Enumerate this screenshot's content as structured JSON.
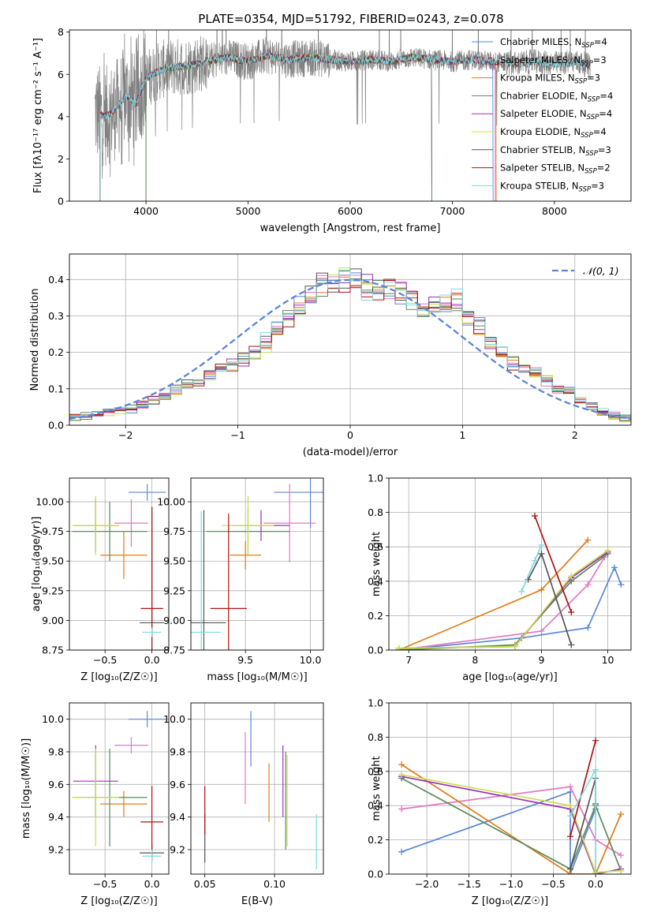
{
  "figure": {
    "title": "PLATE=0354, MJD=51792, FIBERID=0243, z=0.078"
  },
  "colors": {
    "Chabrier MILES": "#5b86d8",
    "Salpeter MILES": "#e377c2",
    "Kroupa MILES": "#e07b1a",
    "Chabrier ELODIE": "#5a8a5a",
    "Salpeter ELODIE": "#9b30b8",
    "Kroupa ELODIE": "#c8e04a",
    "Chabrier STELIB": "#555555",
    "Salpeter STELIB": "#b01010",
    "Kroupa STELIB": "#7fd8dc",
    "data": "#808080",
    "normal": "#5b86d8"
  },
  "chart_data": [
    {
      "id": "spectrum",
      "type": "line",
      "title": "PLATE=0354, MJD=51792, FIBERID=0243, z=0.078",
      "xlabel": "wavelength [Angstrom, rest frame]",
      "ylabel": "Flux [fλ10⁻¹⁷ erg cm⁻² s⁻¹ A⁻¹]",
      "xlim": [
        3250,
        8750
      ],
      "ylim": [
        0,
        8.1
      ],
      "xticks": [
        4000,
        5000,
        6000,
        7000,
        8000
      ],
      "yticks": [
        0,
        2,
        4,
        6,
        8
      ],
      "legend_position": "upper-right",
      "legend": [
        {
          "label": "Chabrier MILES, N",
          "sub": "SSP",
          "tail": "=4",
          "model": "Chabrier MILES"
        },
        {
          "label": "Salpeter MILES, N",
          "sub": "SSP",
          "tail": "=3",
          "model": "Salpeter MILES"
        },
        {
          "label": "Kroupa MILES, N",
          "sub": "SSP",
          "tail": "=3",
          "model": "Kroupa MILES"
        },
        {
          "label": "Chabrier ELODIE, N",
          "sub": "SSP",
          "tail": "=4",
          "model": "Chabrier ELODIE"
        },
        {
          "label": "Salpeter ELODIE, N",
          "sub": "SSP",
          "tail": "=4",
          "model": "Salpeter ELODIE"
        },
        {
          "label": "Kroupa ELODIE, N",
          "sub": "SSP",
          "tail": "=4",
          "model": "Kroupa ELODIE"
        },
        {
          "label": "Chabrier STELIB, N",
          "sub": "SSP",
          "tail": "=3",
          "model": "Chabrier STELIB"
        },
        {
          "label": "Salpeter STELIB, N",
          "sub": "SSP",
          "tail": "=2",
          "model": "Salpeter STELIB"
        },
        {
          "label": "Kroupa STELIB, N",
          "sub": "SSP",
          "tail": "=3",
          "model": "Kroupa STELIB"
        }
      ],
      "spectrum_range": [
        3500,
        8350
      ],
      "continuum": [
        [
          3500,
          4.2
        ],
        [
          3600,
          4.0
        ],
        [
          3700,
          4.3
        ],
        [
          3800,
          5.0
        ],
        [
          3900,
          4.6
        ],
        [
          4000,
          5.8
        ],
        [
          4100,
          6.1
        ],
        [
          4200,
          6.3
        ],
        [
          4400,
          6.4
        ],
        [
          4600,
          6.6
        ],
        [
          4800,
          6.8
        ],
        [
          5000,
          6.6
        ],
        [
          5200,
          6.9
        ],
        [
          5400,
          6.7
        ],
        [
          5600,
          6.8
        ],
        [
          5800,
          6.7
        ],
        [
          6000,
          6.6
        ],
        [
          6200,
          6.7
        ],
        [
          6400,
          6.6
        ],
        [
          6600,
          6.8
        ],
        [
          6800,
          6.7
        ],
        [
          7000,
          6.6
        ],
        [
          7200,
          6.7
        ],
        [
          7400,
          6.6
        ],
        [
          7600,
          6.5
        ],
        [
          7800,
          6.6
        ],
        [
          8000,
          6.5
        ],
        [
          8200,
          6.6
        ],
        [
          8350,
          6.4
        ]
      ],
      "model_cutoffs": [
        {
          "model": "Kroupa MILES",
          "start": 3550,
          "end": 7430
        },
        {
          "model": "Salpeter MILES",
          "start": 3550,
          "end": 7420
        },
        {
          "model": "Chabrier MILES",
          "start": 3550,
          "end": 7400
        },
        {
          "model": "Kroupa ELODIE",
          "start": 4000,
          "end": 6800
        },
        {
          "model": "Salpeter ELODIE",
          "start": 4000,
          "end": 6800
        },
        {
          "model": "Chabrier ELODIE",
          "start": 4000,
          "end": 6800
        },
        {
          "model": "Salpeter STELIB",
          "start": 3550,
          "end": 8350
        },
        {
          "model": "Chabrier STELIB",
          "start": 3550,
          "end": 8350
        },
        {
          "model": "Kroupa STELIB",
          "start": 3550,
          "end": 8350
        }
      ]
    },
    {
      "id": "residuals",
      "type": "bar",
      "xlabel": "(data-model)/error",
      "ylabel": "Normed distribution",
      "xlim": [
        -2.5,
        2.5
      ],
      "ylim": [
        0,
        0.47
      ],
      "xticks": [
        -2,
        -1,
        0,
        1,
        2
      ],
      "yticks": [
        0.0,
        0.1,
        0.2,
        0.3,
        0.4
      ],
      "bin_edges_range": [
        -2.5,
        2.5
      ],
      "n_bins": 50,
      "legend": [
        {
          "label": "𝒩(0, 1)",
          "style": "dashed"
        }
      ],
      "base_hist": [
        0.02,
        0.025,
        0.03,
        0.035,
        0.04,
        0.045,
        0.055,
        0.07,
        0.08,
        0.1,
        0.11,
        0.12,
        0.14,
        0.15,
        0.17,
        0.18,
        0.2,
        0.23,
        0.27,
        0.3,
        0.33,
        0.36,
        0.38,
        0.39,
        0.4,
        0.39,
        0.38,
        0.37,
        0.37,
        0.36,
        0.35,
        0.33,
        0.32,
        0.33,
        0.34,
        0.3,
        0.27,
        0.23,
        0.2,
        0.17,
        0.16,
        0.14,
        0.12,
        0.1,
        0.09,
        0.07,
        0.05,
        0.035,
        0.028,
        0.02
      ]
    },
    {
      "id": "age-vs-z",
      "type": "scatter",
      "xlabel": "Z [log₁₀(Z/Z☉)]",
      "ylabel": "age  [log₁₀(age/yr)]",
      "xlim": [
        -0.88,
        0.18
      ],
      "ylim": [
        8.75,
        10.2
      ],
      "xticks": [
        -0.5,
        0.0
      ],
      "yticks": [
        8.75,
        9.0,
        9.25,
        9.5,
        9.75,
        10.0
      ],
      "points": [
        {
          "model": "Chabrier MILES",
          "x": -0.05,
          "y": 10.08,
          "xerr": 0.2,
          "yerr": 0.07
        },
        {
          "model": "Salpeter MILES",
          "x": -0.22,
          "y": 9.82,
          "xerr": 0.18,
          "yerr": 0.2
        },
        {
          "model": "Kroupa MILES",
          "x": -0.3,
          "y": 9.55,
          "xerr": 0.25,
          "yerr": 0.2
        },
        {
          "model": "Chabrier ELODIE",
          "x": -0.45,
          "y": 9.75,
          "xerr": 0.4,
          "yerr": 0.25
        },
        {
          "model": "Salpeter ELODIE",
          "x": -0.6,
          "y": 9.8,
          "xerr": 0.24,
          "yerr": 0.22
        },
        {
          "model": "Kroupa ELODIE",
          "x": -0.6,
          "y": 9.8,
          "xerr": 0.25,
          "yerr": 0.25
        },
        {
          "model": "Chabrier STELIB",
          "x": 0.0,
          "y": 8.98,
          "xerr": 0.13,
          "yerr": 0.98
        },
        {
          "model": "Salpeter STELIB",
          "x": 0.0,
          "y": 9.1,
          "xerr": 0.12,
          "yerr": 0.85
        },
        {
          "model": "Kroupa STELIB",
          "x": 0.0,
          "y": 8.9,
          "xerr": 0.1,
          "yerr": 0.04
        }
      ]
    },
    {
      "id": "age-vs-mass",
      "type": "scatter",
      "xlabel": "mass [log₁₀(M/M☉)]",
      "ylabel": "",
      "xlim": [
        9.08,
        10.1
      ],
      "ylim": [
        8.75,
        10.2
      ],
      "xticks": [
        9.5,
        10.0
      ],
      "yticks": [
        8.75,
        9.0,
        9.25,
        9.5,
        9.75,
        10.0
      ],
      "points": [
        {
          "model": "Chabrier MILES",
          "x": 10.0,
          "y": 10.08,
          "xerr": 0.28,
          "yerr": 0.3
        },
        {
          "model": "Salpeter MILES",
          "x": 9.84,
          "y": 9.82,
          "xerr": 0.2,
          "yerr": 0.33
        },
        {
          "model": "Kroupa MILES",
          "x": 9.5,
          "y": 9.55,
          "xerr": 0.12,
          "yerr": 0.12
        },
        {
          "model": "Chabrier ELODIE",
          "x": 9.52,
          "y": 9.75,
          "xerr": 0.32,
          "yerr": 0.2
        },
        {
          "model": "Salpeter ELODIE",
          "x": 9.62,
          "y": 9.8,
          "xerr": 0.22,
          "yerr": 0.13
        },
        {
          "model": "Kroupa ELODIE",
          "x": 9.52,
          "y": 9.8,
          "xerr": 0.2,
          "yerr": 0.25
        },
        {
          "model": "Chabrier STELIB",
          "x": 9.18,
          "y": 8.98,
          "xerr": 0.17,
          "yerr": 0.95
        },
        {
          "model": "Salpeter STELIB",
          "x": 9.37,
          "y": 9.1,
          "xerr": 0.14,
          "yerr": 0.8
        },
        {
          "model": "Kroupa STELIB",
          "x": 9.16,
          "y": 8.9,
          "xerr": 0.15,
          "yerr": 1.02
        }
      ]
    },
    {
      "id": "weight-vs-age",
      "type": "line",
      "xlabel": "age  [log₁₀(age/yr)]",
      "ylabel": "mass weight",
      "xlim": [
        6.7,
        10.35
      ],
      "ylim": [
        0,
        1.0
      ],
      "xticks": [
        7,
        8,
        9,
        10
      ],
      "yticks": [
        0.0,
        0.2,
        0.4,
        0.6,
        0.8,
        1.0
      ],
      "series": [
        {
          "model": "Chabrier MILES",
          "points": [
            [
              6.85,
              0.0
            ],
            [
              8.7,
              0.07
            ],
            [
              9.7,
              0.13
            ],
            [
              10.1,
              0.48
            ],
            [
              10.2,
              0.38
            ]
          ]
        },
        {
          "model": "Salpeter MILES",
          "points": [
            [
              6.85,
              0.0
            ],
            [
              9.0,
              0.11
            ],
            [
              9.7,
              0.38
            ],
            [
              9.95,
              0.54
            ]
          ]
        },
        {
          "model": "Kroupa MILES",
          "points": [
            [
              6.85,
              0.0
            ],
            [
              9.0,
              0.35
            ],
            [
              9.7,
              0.64
            ]
          ]
        },
        {
          "model": "Chabrier ELODIE",
          "points": [
            [
              6.85,
              0.0
            ],
            [
              8.6,
              0.03
            ],
            [
              9.45,
              0.4
            ],
            [
              10.0,
              0.56
            ]
          ]
        },
        {
          "model": "Salpeter ELODIE",
          "points": [
            [
              6.85,
              0.01
            ],
            [
              8.6,
              0.02
            ],
            [
              9.45,
              0.42
            ],
            [
              10.0,
              0.57
            ]
          ]
        },
        {
          "model": "Kroupa ELODIE",
          "points": [
            [
              6.85,
              0.01
            ],
            [
              8.6,
              0.02
            ],
            [
              9.45,
              0.43
            ],
            [
              10.0,
              0.58
            ]
          ]
        },
        {
          "model": "Chabrier STELIB",
          "points": [
            [
              8.8,
              0.41
            ],
            [
              9.0,
              0.56
            ],
            [
              9.45,
              0.03
            ]
          ]
        },
        {
          "model": "Salpeter STELIB",
          "points": [
            [
              8.9,
              0.78
            ],
            [
              9.45,
              0.22
            ]
          ]
        },
        {
          "model": "Kroupa STELIB",
          "points": [
            [
              8.7,
              0.34
            ],
            [
              8.9,
              0.52
            ],
            [
              9.0,
              0.61
            ]
          ]
        }
      ]
    },
    {
      "id": "mass-vs-z",
      "type": "scatter",
      "xlabel": "Z [log₁₀(Z/Z☉)]",
      "ylabel": "mass [log₁₀(M/M☉)]",
      "xlim": [
        -0.88,
        0.18
      ],
      "ylim": [
        9.05,
        10.1
      ],
      "xticks": [
        -0.5,
        0.0
      ],
      "yticks": [
        9.2,
        9.4,
        9.6,
        9.8,
        10.0
      ],
      "points": [
        {
          "model": "Chabrier MILES",
          "x": -0.05,
          "y": 10.0,
          "xerr": 0.2,
          "yerr": 0.05
        },
        {
          "model": "Salpeter MILES",
          "x": -0.22,
          "y": 9.84,
          "xerr": 0.18,
          "yerr": 0.05
        },
        {
          "model": "Kroupa MILES",
          "x": -0.3,
          "y": 9.48,
          "xerr": 0.25,
          "yerr": 0.08
        },
        {
          "model": "Chabrier ELODIE",
          "x": -0.45,
          "y": 9.52,
          "xerr": 0.4,
          "yerr": 0.3
        },
        {
          "model": "Salpeter ELODIE",
          "x": -0.6,
          "y": 9.62,
          "xerr": 0.24,
          "yerr": 0.22
        },
        {
          "model": "Kroupa ELODIE",
          "x": -0.6,
          "y": 9.52,
          "xerr": 0.25,
          "yerr": 0.3
        },
        {
          "model": "Chabrier STELIB",
          "x": 0.0,
          "y": 9.18,
          "xerr": 0.13,
          "yerr": 0.05
        },
        {
          "model": "Salpeter STELIB",
          "x": 0.0,
          "y": 9.37,
          "xerr": 0.12,
          "yerr": 0.22
        },
        {
          "model": "Kroupa STELIB",
          "x": 0.0,
          "y": 9.16,
          "xerr": 0.1,
          "yerr": 0.04
        }
      ]
    },
    {
      "id": "mass-vs-ebv",
      "type": "scatter",
      "xlabel": "E(B-V)",
      "ylabel": "",
      "xlim": [
        0.04,
        0.135
      ],
      "ylim": [
        9.05,
        10.1
      ],
      "xticks": [
        0.05,
        0.1
      ],
      "yticks": [
        9.2,
        9.4,
        9.6,
        9.8,
        10.0
      ],
      "points": [
        {
          "model": "Chabrier MILES",
          "x": 0.083,
          "y": 9.88,
          "xerr": 0,
          "yerr": 0.17
        },
        {
          "model": "Salpeter MILES",
          "x": 0.079,
          "y": 9.7,
          "xerr": 0,
          "yerr": 0.22
        },
        {
          "model": "Kroupa MILES",
          "x": 0.096,
          "y": 9.55,
          "xerr": 0,
          "yerr": 0.18
        },
        {
          "model": "Chabrier ELODIE",
          "x": 0.108,
          "y": 9.5,
          "xerr": 0,
          "yerr": 0.3
        },
        {
          "model": "Salpeter ELODIE",
          "x": 0.106,
          "y": 9.62,
          "xerr": 0,
          "yerr": 0.22
        },
        {
          "model": "Kroupa ELODIE",
          "x": 0.109,
          "y": 9.5,
          "xerr": 0,
          "yerr": 0.28
        },
        {
          "model": "Chabrier STELIB",
          "x": 0.05,
          "y": 9.27,
          "xerr": 0,
          "yerr": 0.15
        },
        {
          "model": "Salpeter STELIB",
          "x": 0.05,
          "y": 9.44,
          "xerr": 0,
          "yerr": 0.15
        },
        {
          "model": "Kroupa STELIB",
          "x": 0.13,
          "y": 9.25,
          "xerr": 0,
          "yerr": 0.17
        }
      ]
    },
    {
      "id": "weight-vs-z",
      "type": "line",
      "xlabel": "Z [log₁₀(Z/Z☉)]",
      "ylabel": "mass weight",
      "xlim": [
        -2.45,
        0.42
      ],
      "ylim": [
        0,
        1.0
      ],
      "xticks": [
        -2.0,
        -1.5,
        -1.0,
        -0.5,
        0.0
      ],
      "yticks": [
        0.0,
        0.2,
        0.4,
        0.6,
        0.8,
        1.0
      ],
      "series": [
        {
          "model": "Chabrier MILES",
          "points": [
            [
              -2.3,
              0.13
            ],
            [
              -0.3,
              0.48
            ],
            [
              -0.3,
              0.0
            ],
            [
              0.0,
              0.38
            ]
          ]
        },
        {
          "model": "Salpeter MILES",
          "points": [
            [
              -2.3,
              0.38
            ],
            [
              -0.3,
              0.51
            ],
            [
              0.0,
              0.2
            ],
            [
              0.3,
              0.11
            ]
          ]
        },
        {
          "model": "Kroupa MILES",
          "points": [
            [
              -2.3,
              0.64
            ],
            [
              -0.3,
              0.0
            ],
            [
              0.0,
              0.0
            ],
            [
              0.3,
              0.35
            ]
          ]
        },
        {
          "model": "Chabrier ELODIE",
          "points": [
            [
              -2.3,
              0.56
            ],
            [
              -0.3,
              0.03
            ],
            [
              0.0,
              0.4
            ],
            [
              0.3,
              0.02
            ]
          ]
        },
        {
          "model": "Salpeter ELODIE",
          "points": [
            [
              -2.3,
              0.57
            ],
            [
              -0.3,
              0.38
            ],
            [
              0.0,
              0.0
            ],
            [
              0.3,
              0.03
            ]
          ]
        },
        {
          "model": "Kroupa ELODIE",
          "points": [
            [
              -2.3,
              0.58
            ],
            [
              -0.3,
              0.4
            ],
            [
              0.0,
              0.01
            ],
            [
              0.3,
              0.02
            ]
          ]
        },
        {
          "model": "Chabrier STELIB",
          "points": [
            [
              -0.3,
              0.03
            ],
            [
              0.0,
              0.56
            ],
            [
              0.0,
              0.41
            ]
          ]
        },
        {
          "model": "Salpeter STELIB",
          "points": [
            [
              -0.3,
              0.22
            ],
            [
              0.0,
              0.78
            ]
          ]
        },
        {
          "model": "Kroupa STELIB",
          "points": [
            [
              -0.3,
              0.34
            ],
            [
              0.0,
              0.61
            ],
            [
              0.0,
              0.0
            ]
          ]
        }
      ]
    }
  ]
}
